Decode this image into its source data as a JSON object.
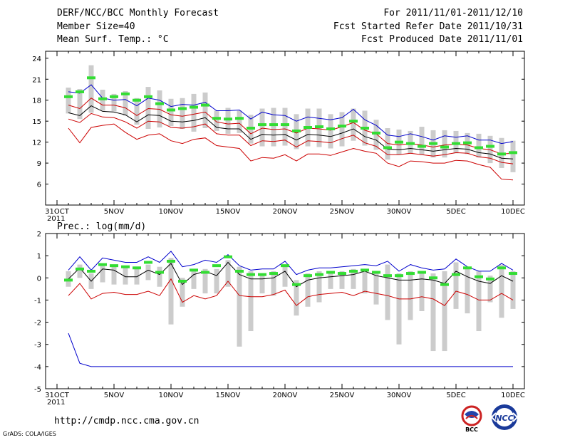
{
  "header": {
    "title": "DERF/NCC/BCC Monthly Forecast",
    "member_size": "Member Size=40",
    "variable": "Mean Surf. Temp.: °C",
    "period": "For 2011/11/01-2011/12/10",
    "started": "Fcst Started Refer Date 2011/10/31",
    "produced": "Fcst Produced Date 2011/11/01"
  },
  "footer": {
    "url": "http://cmdp.ncc.cma.gov.cn",
    "credit": "GrADS: COLA/IGES",
    "logo_bcc": "BCC",
    "logo_ncc": "NCC"
  },
  "colors": {
    "upper": "#0000cc",
    "lower": "#cc0000",
    "mean": "#000000",
    "obs": "#33dd33",
    "box": "#cccccc"
  },
  "x_labels": [
    {
      "day": 0,
      "label": "31OCT",
      "sub": "2011"
    },
    {
      "day": 5,
      "label": "5NOV"
    },
    {
      "day": 10,
      "label": "10NOV"
    },
    {
      "day": 15,
      "label": "15NOV"
    },
    {
      "day": 20,
      "label": "20NOV"
    },
    {
      "day": 25,
      "label": "25NOV"
    },
    {
      "day": 30,
      "label": "30NOV"
    },
    {
      "day": 35,
      "label": "5DEC"
    },
    {
      "day": 40,
      "label": "10DEC"
    }
  ],
  "chart_data": [
    {
      "type": "line",
      "title": "Mean Surf. Temp.: °C",
      "ylabel": "",
      "ylim": [
        3,
        25
      ],
      "yticks": [
        6,
        9,
        12,
        15,
        18,
        21,
        24
      ],
      "x_days": [
        1,
        2,
        3,
        4,
        5,
        6,
        7,
        8,
        9,
        10,
        11,
        12,
        13,
        14,
        15,
        16,
        17,
        18,
        19,
        20,
        21,
        22,
        23,
        24,
        25,
        26,
        27,
        28,
        29,
        30,
        31,
        32,
        33,
        34,
        35,
        36,
        37,
        38,
        39,
        40
      ],
      "series": [
        {
          "name": "upper",
          "values": [
            19.2,
            19.0,
            20.2,
            18.3,
            18.0,
            18.1,
            17.2,
            18.3,
            18.0,
            17.1,
            17.4,
            17.3,
            17.7,
            16.5,
            16.5,
            16.6,
            15.3,
            16.3,
            15.9,
            15.8,
            15.0,
            15.6,
            15.4,
            15.2,
            15.5,
            16.7,
            15.2,
            14.4,
            13.0,
            12.8,
            13.2,
            12.8,
            12.3,
            12.9,
            12.7,
            12.9,
            12.3,
            12.3,
            11.8,
            12.1
          ]
        },
        {
          "name": "ens_high",
          "values": [
            17.3,
            16.8,
            18.3,
            17.3,
            17.3,
            16.9,
            15.8,
            16.8,
            16.7,
            15.9,
            15.7,
            16.0,
            16.3,
            14.9,
            14.6,
            14.7,
            13.2,
            14.0,
            13.8,
            13.9,
            13.3,
            14.0,
            13.9,
            13.7,
            14.2,
            14.8,
            13.7,
            13.2,
            11.8,
            11.6,
            11.8,
            11.6,
            11.3,
            11.6,
            11.7,
            11.6,
            11.1,
            10.9,
            10.3,
            10.4
          ]
        },
        {
          "name": "mean",
          "values": [
            16.2,
            15.8,
            17.2,
            16.4,
            16.3,
            15.9,
            14.9,
            15.9,
            15.8,
            15.0,
            14.9,
            15.1,
            15.5,
            14.1,
            13.9,
            13.9,
            12.4,
            13.1,
            13.0,
            13.1,
            12.3,
            13.1,
            13.0,
            12.8,
            13.3,
            13.9,
            12.8,
            12.3,
            11.0,
            10.9,
            11.1,
            10.9,
            10.7,
            10.9,
            11.1,
            11.0,
            10.5,
            10.3,
            9.7,
            9.6
          ]
        },
        {
          "name": "ens_low",
          "values": [
            15.3,
            14.8,
            16.1,
            15.6,
            15.5,
            14.9,
            14.0,
            15.0,
            14.9,
            14.1,
            14.0,
            14.2,
            14.6,
            13.2,
            13.0,
            13.0,
            11.5,
            12.2,
            12.1,
            12.3,
            11.3,
            12.2,
            12.1,
            11.9,
            12.5,
            13.0,
            11.9,
            11.4,
            10.2,
            10.2,
            10.4,
            10.2,
            10.0,
            10.2,
            10.5,
            10.4,
            9.9,
            9.7,
            9.1,
            8.9
          ]
        },
        {
          "name": "lower",
          "values": [
            14.0,
            11.9,
            14.1,
            14.4,
            14.6,
            13.4,
            12.4,
            13.0,
            13.2,
            12.2,
            11.8,
            12.4,
            12.6,
            11.5,
            11.3,
            11.1,
            9.3,
            9.8,
            9.7,
            10.2,
            9.3,
            10.3,
            10.3,
            10.1,
            10.6,
            11.1,
            10.7,
            10.4,
            9.0,
            8.5,
            9.3,
            9.2,
            9.0,
            9.0,
            9.4,
            9.3,
            8.8,
            8.4,
            6.7,
            6.6
          ]
        }
      ],
      "obs": [
        18.5,
        19.2,
        21.2,
        18.2,
        18.5,
        18.9,
        18.0,
        18.5,
        17.5,
        16.6,
        16.8,
        17.0,
        17.3,
        15.4,
        15.3,
        15.4,
        14.0,
        14.5,
        14.5,
        14.5,
        13.6,
        14.1,
        14.2,
        13.9,
        14.3,
        15.0,
        14.0,
        13.3,
        11.2,
        12.0,
        11.8,
        11.4,
        11.8,
        11.3,
        11.8,
        11.9,
        11.2,
        11.4,
        10.3,
        10.5
      ],
      "box_top": [
        19.8,
        19.6,
        23.0,
        19.5,
        18.9,
        19.3,
        18.3,
        19.9,
        19.4,
        18.2,
        18.3,
        18.9,
        19.1,
        16.5,
        16.9,
        16.5,
        15.9,
        16.8,
        16.9,
        16.9,
        16.0,
        16.8,
        16.8,
        16.0,
        16.3,
        16.8,
        16.5,
        15.2,
        14.0,
        13.8,
        13.6,
        14.2,
        13.7,
        13.7,
        13.6,
        13.3,
        13.2,
        12.9,
        12.6,
        12.2
      ],
      "box_bottom": [
        16.1,
        15.3,
        16.2,
        16.5,
        16.4,
        15.8,
        14.5,
        13.9,
        14.1,
        14.3,
        13.9,
        13.5,
        14.0,
        13.6,
        13.2,
        13.3,
        11.8,
        11.4,
        11.4,
        11.5,
        11.0,
        11.4,
        11.3,
        11.1,
        11.4,
        12.2,
        11.5,
        10.9,
        9.5,
        10.2,
        10.4,
        10.2,
        9.8,
        9.8,
        10.4,
        10.3,
        9.8,
        9.0,
        8.3,
        7.7
      ]
    },
    {
      "type": "line",
      "title": "Prec.: log(mm/d)",
      "ylabel": "",
      "ylim": [
        -5,
        2
      ],
      "yticks": [
        -5,
        -4,
        -3,
        -2,
        -1,
        0,
        1,
        2
      ],
      "x_days": [
        1,
        2,
        3,
        4,
        5,
        6,
        7,
        8,
        9,
        10,
        11,
        12,
        13,
        14,
        15,
        16,
        17,
        18,
        19,
        20,
        21,
        22,
        23,
        24,
        25,
        26,
        27,
        28,
        29,
        30,
        31,
        32,
        33,
        34,
        35,
        36,
        37,
        38,
        39,
        40
      ],
      "series": [
        {
          "name": "upper",
          "values": [
            0.35,
            0.95,
            0.35,
            0.9,
            0.8,
            0.7,
            0.7,
            0.95,
            0.7,
            1.2,
            0.5,
            0.6,
            0.8,
            0.7,
            1.05,
            0.55,
            0.35,
            0.4,
            0.4,
            0.75,
            0.15,
            0.35,
            0.45,
            0.45,
            0.5,
            0.55,
            0.6,
            0.55,
            0.75,
            0.3,
            0.6,
            0.45,
            0.35,
            0.4,
            0.85,
            0.5,
            0.3,
            0.3,
            0.65,
            0.35
          ]
        },
        {
          "name": "mean",
          "values": [
            -0.05,
            0.45,
            -0.15,
            0.4,
            0.35,
            0.05,
            0.05,
            0.35,
            0.15,
            0.65,
            -0.3,
            0.15,
            0.3,
            0.1,
            0.7,
            0.15,
            -0.05,
            -0.05,
            0.0,
            0.3,
            -0.4,
            -0.1,
            0.0,
            0.05,
            0.1,
            0.15,
            0.3,
            0.1,
            0.0,
            -0.1,
            -0.1,
            -0.05,
            -0.1,
            -0.25,
            0.3,
            0.05,
            -0.15,
            -0.25,
            0.1,
            -0.15
          ]
        },
        {
          "name": "lower",
          "values": [
            -0.8,
            -0.25,
            -0.95,
            -0.7,
            -0.65,
            -0.75,
            -0.75,
            -0.6,
            -0.8,
            -0.05,
            -1.1,
            -0.8,
            -0.95,
            -0.8,
            -0.15,
            -0.8,
            -0.85,
            -0.85,
            -0.75,
            -0.55,
            -1.25,
            -0.85,
            -0.75,
            -0.7,
            -0.65,
            -0.8,
            -0.6,
            -0.7,
            -0.8,
            -0.95,
            -0.95,
            -0.85,
            -0.95,
            -1.25,
            -0.6,
            -0.75,
            -1.0,
            -1.0,
            -0.7,
            -1.0
          ]
        },
        {
          "name": "min",
          "values": [
            -2.5,
            -3.85,
            -4.0,
            -4.0,
            -4.0,
            -4.0,
            -4.0,
            -4.0,
            -4.0,
            -4.0,
            -4.0,
            -4.0,
            -4.0,
            -4.0,
            -4.0,
            -4.0,
            -4.0,
            -4.0,
            -4.0,
            -4.0,
            -4.0,
            -4.0,
            -4.0,
            -4.0,
            -4.0,
            -4.0,
            -4.0,
            -4.0,
            -4.0,
            -4.0,
            -4.0,
            -4.0,
            -4.0,
            -4.0,
            -4.0,
            -4.0,
            -4.0,
            -4.0,
            -4.0,
            -4.0
          ]
        }
      ],
      "obs": [
        -0.1,
        0.4,
        0.3,
        0.6,
        0.55,
        0.5,
        0.45,
        0.7,
        0.25,
        0.75,
        -0.15,
        0.35,
        0.25,
        0.55,
        0.95,
        0.3,
        0.15,
        0.15,
        0.2,
        0.55,
        -0.3,
        0.1,
        0.15,
        0.25,
        0.2,
        0.3,
        0.35,
        0.25,
        0.1,
        0.1,
        0.2,
        0.25,
        0.0,
        -0.3,
        0.15,
        0.45,
        0.05,
        -0.05,
        0.45,
        0.2
      ],
      "box_top": [
        0.3,
        0.6,
        0.2,
        0.6,
        0.6,
        0.5,
        0.4,
        0.6,
        0.5,
        0.9,
        0.0,
        0.3,
        0.4,
        0.4,
        0.8,
        0.5,
        0.3,
        0.2,
        0.3,
        0.6,
        -0.1,
        0.2,
        0.3,
        0.3,
        0.3,
        0.4,
        0.4,
        0.3,
        0.6,
        0.2,
        0.3,
        0.3,
        0.2,
        0.3,
        0.7,
        0.5,
        0.3,
        0.1,
        0.6,
        0.3
      ],
      "box_bottom": [
        -0.4,
        0.0,
        -0.5,
        -0.2,
        -0.3,
        -0.3,
        -0.3,
        -0.1,
        -0.4,
        -2.1,
        -1.3,
        -0.5,
        -0.7,
        -0.7,
        -0.4,
        -3.1,
        -2.4,
        -0.7,
        -0.8,
        -0.4,
        -1.7,
        -1.3,
        -1.1,
        -0.5,
        -0.5,
        -0.5,
        -0.7,
        -1.2,
        -1.9,
        -3.0,
        -1.9,
        -1.5,
        -3.3,
        -3.3,
        -1.4,
        -1.6,
        -2.4,
        -1.1,
        -1.8,
        -1.4
      ]
    }
  ]
}
